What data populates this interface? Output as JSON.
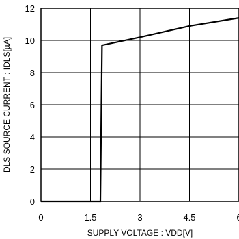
{
  "chart_data": {
    "type": "line",
    "title": "",
    "xlabel": "SUPPLY VOLTAGE : VDD[V]",
    "ylabel": "DLS SOURCE CURRENT : IDLS[µA]",
    "xlim": [
      0,
      6
    ],
    "ylim": [
      0,
      12
    ],
    "xticks": [
      0,
      1.5,
      3,
      4.5,
      6
    ],
    "xtick_labels": [
      "0",
      "1.5",
      "3",
      "4.5",
      "6"
    ],
    "yticks": [
      0,
      2,
      4,
      6,
      8,
      10,
      12
    ],
    "ytick_labels": [
      "0",
      "2",
      "4",
      "6",
      "8",
      "10",
      "12"
    ],
    "grid": true,
    "series": [
      {
        "x": [
          0,
          1.8,
          1.85,
          3.0,
          4.5,
          6.0
        ],
        "y": [
          0,
          0,
          9.7,
          10.2,
          10.9,
          11.4
        ]
      }
    ],
    "colors": {
      "line": "#000000",
      "grid": "#000000",
      "frame": "#000000"
    }
  }
}
